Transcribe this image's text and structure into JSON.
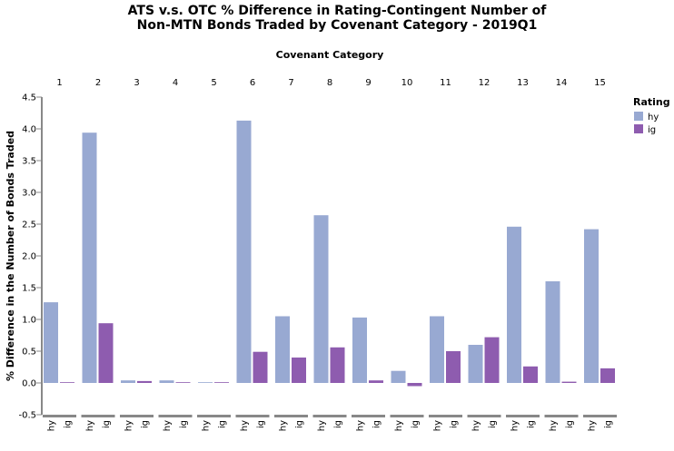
{
  "chart_data": {
    "type": "bar",
    "title": [
      "ATS v.s. OTC % Difference in Rating-Contingent Number of",
      "Non-MTN Bonds Traded by Covenant Category - 2019Q1"
    ],
    "column_title": "Covenant Category",
    "categories": [
      "1",
      "2",
      "3",
      "4",
      "5",
      "6",
      "7",
      "8",
      "9",
      "10",
      "11",
      "12",
      "13",
      "14",
      "15"
    ],
    "sub_categories": [
      "hy",
      "ig"
    ],
    "ylabel": "% Difference in the Number of Bonds Traded",
    "xlabel": "",
    "ylim": [
      -0.5,
      4.5
    ],
    "yticks": [
      "4.5",
      "4.0",
      "3.5",
      "3.0",
      "2.5",
      "2.0",
      "1.5",
      "1.0",
      "0.5",
      "0.0",
      "-0.5"
    ],
    "series": [
      {
        "name": "hy",
        "color": "#98a9d2",
        "values": [
          1.27,
          3.94,
          0.04,
          0.04,
          0.01,
          4.13,
          1.05,
          2.64,
          1.03,
          0.19,
          1.05,
          0.6,
          2.46,
          1.6,
          2.42
        ]
      },
      {
        "name": "ig",
        "color": "#8e5caf",
        "values": [
          0.0,
          0.94,
          0.03,
          0.01,
          0.0,
          0.49,
          0.4,
          0.56,
          0.04,
          -0.05,
          0.5,
          0.72,
          0.26,
          0.02,
          0.23
        ]
      }
    ],
    "legend": {
      "title": "Rating",
      "items": [
        "hy",
        "ig"
      ],
      "placement": "top-right"
    },
    "grid": false
  }
}
